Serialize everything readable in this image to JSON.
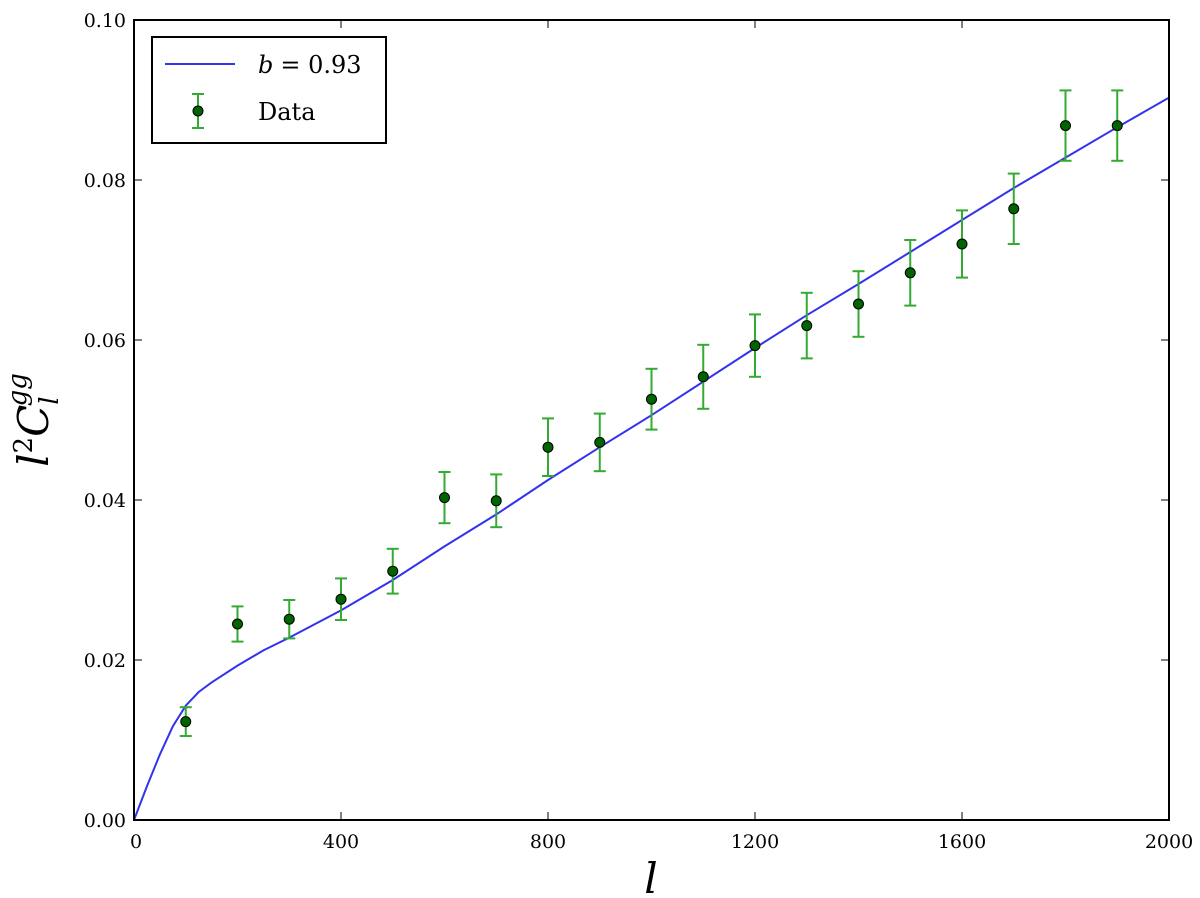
{
  "chart_data": {
    "type": "scatter",
    "title": "",
    "xlabel": "l",
    "ylabel_base": "l",
    "ylabel_sup": "2",
    "ylabel_main": "C",
    "ylabel_sub": "l",
    "ylabel_supscript": "gg",
    "xlim": [
      0,
      2000
    ],
    "ylim": [
      0.0,
      0.1
    ],
    "xticks": [
      0,
      400,
      800,
      1200,
      1600,
      2000
    ],
    "xtick_labels": [
      "0",
      "400",
      "800",
      "1200",
      "1600",
      "2000"
    ],
    "yticks": [
      0.0,
      0.02,
      0.04,
      0.06,
      0.08,
      0.1
    ],
    "ytick_labels": [
      "0.00",
      "0.02",
      "0.04",
      "0.06",
      "0.08",
      "0.10"
    ],
    "grid": false,
    "legend_position": "top-left",
    "series": [
      {
        "name": "b = 0.93",
        "legend_var": "b",
        "legend_value": "= 0.93",
        "kind": "line",
        "color": "#3333ee",
        "x": [
          0,
          25,
          50,
          75,
          100,
          125,
          150,
          200,
          250,
          300,
          400,
          500,
          600,
          700,
          800,
          900,
          1000,
          1100,
          1200,
          1300,
          1400,
          1500,
          1600,
          1700,
          1800,
          1900,
          2000
        ],
        "y": [
          0.0,
          0.0042,
          0.0082,
          0.0117,
          0.0143,
          0.016,
          0.0172,
          0.0193,
          0.0212,
          0.0228,
          0.0262,
          0.03,
          0.0342,
          0.0382,
          0.0425,
          0.0466,
          0.0506,
          0.0548,
          0.059,
          0.0631,
          0.067,
          0.071,
          0.075,
          0.079,
          0.0828,
          0.0866,
          0.0903
        ]
      },
      {
        "name": "Data",
        "kind": "errorbar",
        "color": "#006400",
        "errcolor": "#33aa33",
        "x": [
          100,
          200,
          300,
          400,
          500,
          600,
          700,
          800,
          900,
          1000,
          1100,
          1200,
          1300,
          1400,
          1500,
          1600,
          1700,
          1800,
          1900
        ],
        "y": [
          0.0123,
          0.0245,
          0.0251,
          0.0276,
          0.0311,
          0.0403,
          0.0399,
          0.0466,
          0.0472,
          0.0526,
          0.0554,
          0.0593,
          0.0618,
          0.0645,
          0.0684,
          0.072,
          0.0764,
          0.0868,
          0.0868
        ],
        "yerr": [
          0.0018,
          0.0022,
          0.0024,
          0.0026,
          0.0028,
          0.0032,
          0.0033,
          0.0036,
          0.0036,
          0.0038,
          0.004,
          0.0039,
          0.0041,
          0.0041,
          0.0041,
          0.0042,
          0.0044,
          0.0044,
          0.0044
        ]
      }
    ]
  }
}
